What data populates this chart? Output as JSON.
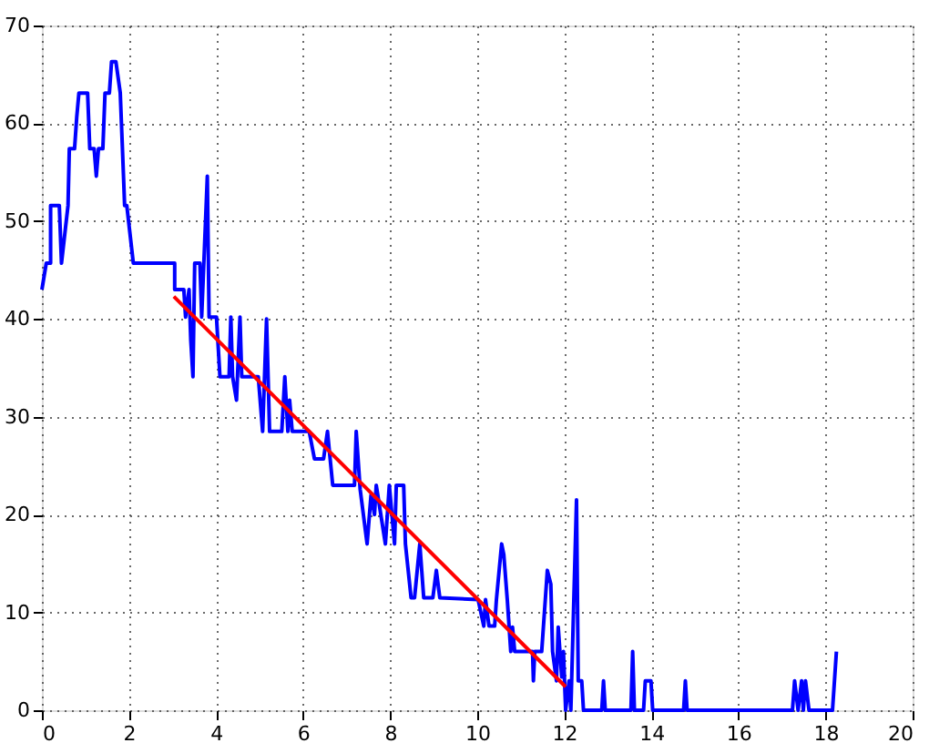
{
  "chart_data": {
    "type": "line",
    "xlim": [
      0,
      20
    ],
    "ylim": [
      0,
      70
    ],
    "xticks": [
      0,
      2,
      4,
      6,
      8,
      10,
      12,
      14,
      16,
      18,
      20
    ],
    "yticks": [
      0,
      10,
      20,
      30,
      40,
      50,
      60,
      70
    ],
    "grid": true,
    "line_style": "solid",
    "marker": "none",
    "series": [
      {
        "color": "#0000ff",
        "x": [
          0,
          0.1,
          0.2,
          0.2,
          0.4,
          0.45,
          0.6,
          0.63,
          0.75,
          0.8,
          0.85,
          1.05,
          1.1,
          1.2,
          1.25,
          1.3,
          1.4,
          1.45,
          1.55,
          1.6,
          1.7,
          1.8,
          1.85,
          1.9,
          1.95,
          2.1,
          3.05,
          3.05,
          3.26,
          3.3,
          3.38,
          3.42,
          3.47,
          3.51,
          3.63,
          3.67,
          3.8,
          3.84,
          4.01,
          4.09,
          4.3,
          4.34,
          4.38,
          4.47,
          4.55,
          4.59,
          4.97,
          5.07,
          5.16,
          5.23,
          5.51,
          5.58,
          5.65,
          5.69,
          5.75,
          6.14,
          6.26,
          6.47,
          6.56,
          6.68,
          7.18,
          7.22,
          7.31,
          7.47,
          7.56,
          7.64,
          7.68,
          7.89,
          7.98,
          8.1,
          8.14,
          8.31,
          8.35,
          8.48,
          8.56,
          8.68,
          8.77,
          8.98,
          9.06,
          9.14,
          10.02,
          10.15,
          10.19,
          10.27,
          10.4,
          10.44,
          10.56,
          10.61,
          10.69,
          10.77,
          10.81,
          10.86,
          11.27,
          11.29,
          11.32,
          11.48,
          11.61,
          11.69,
          11.73,
          11.82,
          11.86,
          11.94,
          11.98,
          12.03,
          12.11,
          12.15,
          12.28,
          12.32,
          12.4,
          12.44,
          12.86,
          12.9,
          12.94,
          13.53,
          13.57,
          13.61,
          13.82,
          13.86,
          13.99,
          14.03,
          14.74,
          14.78,
          14.82,
          17.24,
          17.29,
          17.37,
          17.45,
          17.49,
          17.54,
          17.62,
          18.16,
          18.25
        ],
        "values": [
          43,
          45.7,
          45.7,
          51.6,
          51.6,
          45.7,
          51.6,
          57.4,
          57.4,
          60.6,
          63.1,
          63.1,
          57.4,
          57.4,
          54.6,
          57.4,
          57.4,
          63.1,
          63.1,
          66.3,
          66.3,
          63.1,
          57.4,
          51.6,
          51.6,
          45.7,
          45.7,
          43,
          43,
          40.2,
          43,
          37.8,
          34.1,
          45.7,
          45.7,
          40.2,
          54.6,
          40.2,
          40.2,
          34.1,
          34.1,
          40.2,
          34.1,
          31.7,
          40.2,
          34.1,
          34.1,
          28.5,
          40,
          28.5,
          28.5,
          34.1,
          28.5,
          31.7,
          28.5,
          28.5,
          25.7,
          25.7,
          28.5,
          23,
          23,
          28.5,
          22.6,
          17,
          22,
          20,
          23,
          17,
          23,
          17,
          23,
          23,
          17,
          11.5,
          11.5,
          17,
          11.5,
          11.5,
          14.3,
          11.5,
          11.3,
          8.6,
          11.3,
          8.6,
          8.6,
          11.3,
          17,
          15.9,
          11.3,
          6,
          8.5,
          6,
          6,
          3,
          6,
          6,
          14.3,
          12.9,
          6,
          3,
          8.5,
          3.4,
          6,
          0,
          3,
          0,
          21.5,
          3,
          3,
          0,
          0,
          3,
          0,
          0,
          6,
          0,
          0,
          3,
          3,
          0,
          0,
          3,
          0,
          0,
          3,
          0,
          3,
          0,
          3,
          0,
          0,
          6
        ]
      },
      {
        "type": "line",
        "color": "#ff0000",
        "x": [
          3.03,
          12.03
        ],
        "values": [
          42.3,
          2.4
        ]
      }
    ]
  }
}
